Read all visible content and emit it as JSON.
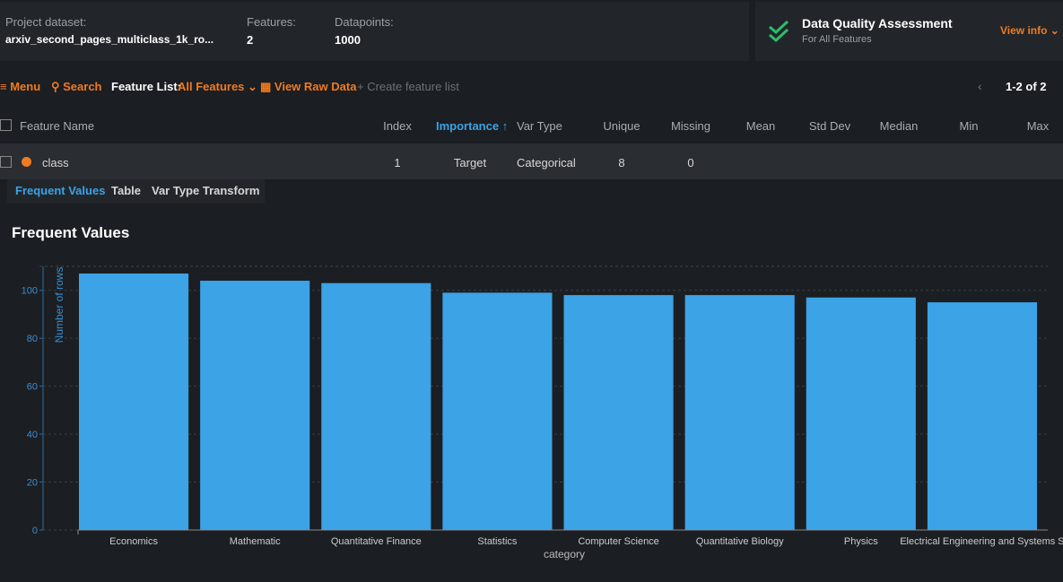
{
  "header": {
    "dataset_label": "Project dataset:",
    "dataset": "arxiv_second_pages_multiclass_1k_ro...",
    "features_label": "Features:",
    "features": "2",
    "datapoints_label": "Datapoints:",
    "datapoints": "1000"
  },
  "quality": {
    "title": "Data Quality Assessment",
    "subtitle": "For All Features",
    "link": "View info"
  },
  "toolbar": {
    "menu": "Menu",
    "search": "Search",
    "feature_list_label": "Feature List:",
    "feature_list": "All Features",
    "raw_data": "View Raw Data",
    "create": "Create feature list",
    "pagination": "1-2 of 2"
  },
  "table": {
    "columns": [
      "Feature Name",
      "Index",
      "Importance",
      "Var Type",
      "Unique",
      "Missing",
      "Mean",
      "Std Dev",
      "Median",
      "Min",
      "Max"
    ],
    "rows": [
      [
        "class",
        "1",
        "Target",
        "Categorical",
        "8",
        "0"
      ]
    ]
  },
  "tabs": [
    "Frequent Values",
    "Table",
    "Var Type Transform"
  ],
  "section_title": "Frequent Values",
  "chart_data": {
    "type": "bar",
    "x_label": "category",
    "y_label": "Number of rows",
    "categories": [
      "Economics",
      "Mathematic",
      "Quantitative Finance",
      "Statistics",
      "Computer Science",
      "Quantitative Biology",
      "Physics",
      "Electrical Engineering and Systems S"
    ],
    "values": [
      107,
      104,
      103,
      99,
      98,
      98,
      97,
      95
    ],
    "color": "#3ba3e6",
    "ylim": [
      0,
      110
    ],
    "yticks": [
      0,
      20,
      40,
      60,
      80,
      100
    ],
    "grid": true
  }
}
